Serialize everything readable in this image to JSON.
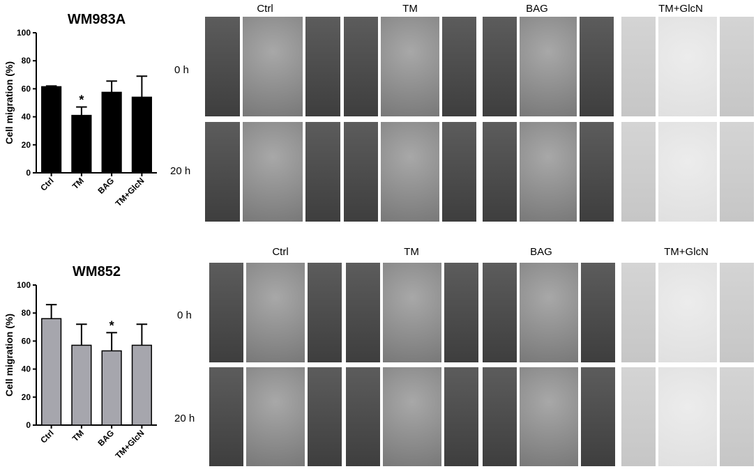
{
  "panels": [
    {
      "chart_data": {
        "type": "bar",
        "title": "WM983A",
        "ylabel": "Cell migration (%)",
        "xlabel": "",
        "categories": [
          "Ctrl",
          "TM",
          "BAG",
          "TM+GlcN"
        ],
        "values": [
          61.5,
          41,
          57.5,
          54
        ],
        "errors": [
          0.5,
          6,
          8,
          15
        ],
        "significance": [
          "",
          "*",
          "",
          ""
        ],
        "ylim": [
          0,
          100
        ],
        "yticks": [
          "0",
          "20",
          "40",
          "60",
          "80",
          "100"
        ],
        "bar_color": "#000000"
      },
      "images": {
        "columns": [
          "Ctrl",
          "TM",
          "BAG",
          "TM+GlcN"
        ],
        "rows": [
          "0 h",
          "20 h"
        ]
      }
    },
    {
      "chart_data": {
        "type": "bar",
        "title": "WM852",
        "ylabel": "Cell migration (%)",
        "xlabel": "",
        "categories": [
          "Ctrl",
          "TM",
          "BAG",
          "TM+GlcN"
        ],
        "values": [
          76,
          57,
          53,
          57
        ],
        "errors": [
          10,
          15,
          13,
          15
        ],
        "significance": [
          "",
          "",
          "*",
          ""
        ],
        "ylim": [
          0,
          100
        ],
        "yticks": [
          "0",
          "20",
          "40",
          "60",
          "80",
          "100"
        ],
        "bar_color": "#a6a6ad"
      },
      "images": {
        "columns": [
          "Ctrl",
          "TM",
          "BAG",
          "TM+GlcN"
        ],
        "rows": [
          "0 h",
          "20 h"
        ]
      }
    }
  ]
}
